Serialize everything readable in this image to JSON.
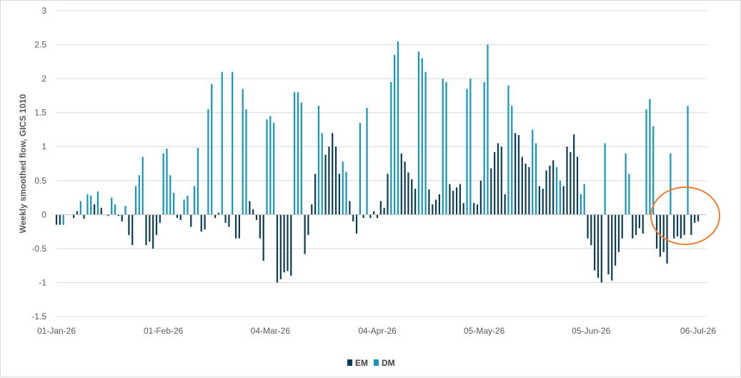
{
  "chart_data": {
    "type": "bar",
    "ylabel": "Weekly smoothed flow, GICS 1010",
    "ylim": [
      -1.5,
      3
    ],
    "yticks": [
      -1.5,
      -1,
      -0.5,
      0,
      0.5,
      1,
      1.5,
      2,
      2.5,
      3
    ],
    "ytick_labels": [
      "-1.5",
      "-1",
      "-0.5",
      "0",
      "0.5",
      "1",
      "1.5",
      "2",
      "2.5",
      "3"
    ],
    "x_start": "2026-01-01",
    "x_end": "2026-07-06",
    "xticks": [
      "2026-01-01",
      "2026-02-01",
      "2026-03-04",
      "2026-04-04",
      "2026-05-05",
      "2026-06-05",
      "2026-07-06"
    ],
    "xtick_labels": [
      "01-Jan-26",
      "01-Feb-26",
      "04-Mar-26",
      "04-Apr-26",
      "05-May-26",
      "05-Jun-26",
      "06-Jul-26"
    ],
    "gridlines": "horizontal",
    "legend_position": "bottom",
    "series": [
      {
        "name": "EM",
        "color": "#0b3c53",
        "points": [
          [
            "2026-01-01",
            -0.15
          ],
          [
            "2026-01-02",
            -0.15
          ],
          [
            "2026-01-06",
            -0.05
          ],
          [
            "2026-01-07",
            0.05
          ],
          [
            "2026-01-09",
            -0.06
          ],
          [
            "2026-01-12",
            0.15
          ],
          [
            "2026-01-14",
            0.1
          ],
          [
            "2026-01-16",
            -0.02
          ],
          [
            "2026-01-19",
            -0.02
          ],
          [
            "2026-01-20",
            -0.1
          ],
          [
            "2026-01-22",
            -0.3
          ],
          [
            "2026-01-23",
            -0.45
          ],
          [
            "2026-01-27",
            -0.45
          ],
          [
            "2026-01-28",
            -0.4
          ],
          [
            "2026-01-29",
            -0.5
          ],
          [
            "2026-01-30",
            -0.3
          ],
          [
            "2026-01-31",
            -0.12
          ],
          [
            "2026-02-05",
            -0.05
          ],
          [
            "2026-02-06",
            -0.08
          ],
          [
            "2026-02-09",
            -0.18
          ],
          [
            "2026-02-12",
            -0.25
          ],
          [
            "2026-02-13",
            -0.22
          ],
          [
            "2026-02-16",
            -0.05
          ],
          [
            "2026-02-17",
            0.03
          ],
          [
            "2026-02-19",
            -0.12
          ],
          [
            "2026-02-20",
            -0.18
          ],
          [
            "2026-02-22",
            -0.35
          ],
          [
            "2026-02-23",
            -0.35
          ],
          [
            "2026-02-26",
            0.2
          ],
          [
            "2026-02-27",
            0.08
          ],
          [
            "2026-02-28",
            -0.08
          ],
          [
            "2026-03-01",
            -0.35
          ],
          [
            "2026-03-02",
            -0.68
          ],
          [
            "2026-03-06",
            -1.0
          ],
          [
            "2026-03-07",
            -0.95
          ],
          [
            "2026-03-08",
            -0.85
          ],
          [
            "2026-03-09",
            -0.83
          ],
          [
            "2026-03-10",
            -0.9
          ],
          [
            "2026-03-14",
            -0.58
          ],
          [
            "2026-03-15",
            -0.3
          ],
          [
            "2026-03-16",
            0.15
          ],
          [
            "2026-03-17",
            0.6
          ],
          [
            "2026-03-20",
            0.88
          ],
          [
            "2026-03-21",
            1.0
          ],
          [
            "2026-03-22",
            1.2
          ],
          [
            "2026-03-23",
            1.0
          ],
          [
            "2026-03-24",
            0.6
          ],
          [
            "2026-03-27",
            0.2
          ],
          [
            "2026-03-28",
            -0.1
          ],
          [
            "2026-03-29",
            -0.28
          ],
          [
            "2026-03-31",
            -0.05
          ],
          [
            "2026-04-02",
            -0.05
          ],
          [
            "2026-04-03",
            0.05
          ],
          [
            "2026-04-04",
            -0.05
          ],
          [
            "2026-04-05",
            0.2
          ],
          [
            "2026-04-06",
            0.1
          ],
          [
            "2026-04-07",
            0.6
          ],
          [
            "2026-04-11",
            0.9
          ],
          [
            "2026-04-12",
            0.78
          ],
          [
            "2026-04-13",
            0.62
          ],
          [
            "2026-04-14",
            0.52
          ],
          [
            "2026-04-15",
            0.38
          ],
          [
            "2026-04-19",
            0.37
          ],
          [
            "2026-04-20",
            0.15
          ],
          [
            "2026-04-21",
            0.22
          ],
          [
            "2026-04-22",
            0.3
          ],
          [
            "2026-04-25",
            0.45
          ],
          [
            "2026-04-26",
            0.35
          ],
          [
            "2026-04-27",
            0.4
          ],
          [
            "2026-04-28",
            0.45
          ],
          [
            "2026-04-29",
            0.17
          ],
          [
            "2026-05-02",
            0.17
          ],
          [
            "2026-05-03",
            0.15
          ],
          [
            "2026-05-04",
            0.5
          ],
          [
            "2026-05-07",
            0.68
          ],
          [
            "2026-05-08",
            0.92
          ],
          [
            "2026-05-09",
            1.05
          ],
          [
            "2026-05-10",
            1.0
          ],
          [
            "2026-05-11",
            0.3
          ],
          [
            "2026-05-14",
            1.2
          ],
          [
            "2026-05-15",
            1.17
          ],
          [
            "2026-05-16",
            0.85
          ],
          [
            "2026-05-17",
            0.75
          ],
          [
            "2026-05-18",
            0.7
          ],
          [
            "2026-05-21",
            0.42
          ],
          [
            "2026-05-22",
            0.38
          ],
          [
            "2026-05-23",
            0.65
          ],
          [
            "2026-05-24",
            0.72
          ],
          [
            "2026-05-25",
            0.8
          ],
          [
            "2026-05-28",
            0.42
          ],
          [
            "2026-05-29",
            1.0
          ],
          [
            "2026-05-30",
            0.92
          ],
          [
            "2026-05-31",
            1.18
          ],
          [
            "2026-06-01",
            0.85
          ],
          [
            "2026-06-04",
            -0.35
          ],
          [
            "2026-06-05",
            -0.45
          ],
          [
            "2026-06-06",
            -0.82
          ],
          [
            "2026-06-07",
            -0.93
          ],
          [
            "2026-06-08",
            -1.0
          ],
          [
            "2026-06-10",
            -0.88
          ],
          [
            "2026-06-11",
            -0.97
          ],
          [
            "2026-06-12",
            -0.75
          ],
          [
            "2026-06-13",
            -0.55
          ],
          [
            "2026-06-14",
            -0.35
          ],
          [
            "2026-06-17",
            -0.35
          ],
          [
            "2026-06-18",
            -0.3
          ],
          [
            "2026-06-19",
            -0.2
          ],
          [
            "2026-06-20",
            -0.28
          ],
          [
            "2026-06-24",
            -0.5
          ],
          [
            "2026-06-25",
            -0.62
          ],
          [
            "2026-06-26",
            -0.55
          ],
          [
            "2026-06-27",
            -0.72
          ],
          [
            "2026-06-29",
            -0.35
          ],
          [
            "2026-06-30",
            -0.32
          ],
          [
            "2026-07-01",
            -0.35
          ],
          [
            "2026-07-02",
            -0.3
          ],
          [
            "2026-07-04",
            -0.3
          ],
          [
            "2026-07-05",
            -0.12
          ],
          [
            "2026-07-06",
            -0.1
          ]
        ]
      },
      {
        "name": "DM",
        "color": "#1595b8",
        "points": [
          [
            "2026-01-03",
            -0.15
          ],
          [
            "2026-01-08",
            0.2
          ],
          [
            "2026-01-10",
            0.3
          ],
          [
            "2026-01-11",
            0.28
          ],
          [
            "2026-01-13",
            0.34
          ],
          [
            "2026-01-17",
            0.25
          ],
          [
            "2026-01-18",
            0.15
          ],
          [
            "2026-01-21",
            0.13
          ],
          [
            "2026-01-24",
            0.42
          ],
          [
            "2026-01-25",
            0.58
          ],
          [
            "2026-01-26",
            0.85
          ],
          [
            "2026-02-01",
            0.9
          ],
          [
            "2026-02-02",
            0.97
          ],
          [
            "2026-02-03",
            0.58
          ],
          [
            "2026-02-04",
            0.32
          ],
          [
            "2026-02-07",
            0.22
          ],
          [
            "2026-02-08",
            0.28
          ],
          [
            "2026-02-10",
            0.42
          ],
          [
            "2026-02-11",
            0.98
          ],
          [
            "2026-02-14",
            1.55
          ],
          [
            "2026-02-15",
            1.92
          ],
          [
            "2026-02-18",
            2.1
          ],
          [
            "2026-02-21",
            2.1
          ],
          [
            "2026-02-24",
            1.85
          ],
          [
            "2026-02-25",
            1.55
          ],
          [
            "2026-03-03",
            1.4
          ],
          [
            "2026-03-04",
            1.45
          ],
          [
            "2026-03-05",
            1.35
          ],
          [
            "2026-03-11",
            1.8
          ],
          [
            "2026-03-12",
            1.8
          ],
          [
            "2026-03-13",
            1.65
          ],
          [
            "2026-03-18",
            1.6
          ],
          [
            "2026-03-19",
            1.2
          ],
          [
            "2026-03-25",
            0.78
          ],
          [
            "2026-03-26",
            0.63
          ],
          [
            "2026-03-30",
            1.35
          ],
          [
            "2026-04-01",
            1.57
          ],
          [
            "2026-04-08",
            1.95
          ],
          [
            "2026-04-09",
            2.35
          ],
          [
            "2026-04-10",
            2.55
          ],
          [
            "2026-04-16",
            2.4
          ],
          [
            "2026-04-17",
            2.3
          ],
          [
            "2026-04-18",
            2.1
          ],
          [
            "2026-04-23",
            2.0
          ],
          [
            "2026-04-24",
            1.95
          ],
          [
            "2026-04-30",
            1.85
          ],
          [
            "2026-05-01",
            2.0
          ],
          [
            "2026-05-05",
            1.95
          ],
          [
            "2026-05-06",
            2.5
          ],
          [
            "2026-05-12",
            1.9
          ],
          [
            "2026-05-13",
            1.6
          ],
          [
            "2026-05-19",
            1.25
          ],
          [
            "2026-05-20",
            1.05
          ],
          [
            "2026-05-26",
            0.7
          ],
          [
            "2026-05-27",
            0.5
          ],
          [
            "2026-06-02",
            0.3
          ],
          [
            "2026-06-03",
            0.45
          ],
          [
            "2026-06-09",
            1.05
          ],
          [
            "2026-06-15",
            0.9
          ],
          [
            "2026-06-16",
            0.6
          ],
          [
            "2026-06-21",
            1.55
          ],
          [
            "2026-06-22",
            1.7
          ],
          [
            "2026-06-23",
            1.3
          ],
          [
            "2026-06-28",
            0.9
          ],
          [
            "2026-07-03",
            1.6
          ]
        ]
      }
    ]
  },
  "legend": [
    {
      "label": "EM",
      "color": "#0b3c53"
    },
    {
      "label": "DM",
      "color": "#1595b8"
    }
  ],
  "annotation_color": "#ed7d31"
}
